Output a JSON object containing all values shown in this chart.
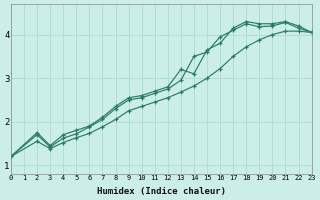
{
  "xlabel": "Humidex (Indice chaleur)",
  "ylabel": "",
  "bg_color": "#cceee8",
  "grid_color": "#aaddcc",
  "line_color": "#2a7a6a",
  "x_ticks": [
    0,
    1,
    2,
    3,
    4,
    5,
    6,
    7,
    8,
    9,
    10,
    11,
    12,
    13,
    14,
    15,
    16,
    17,
    18,
    19,
    20,
    21,
    22,
    23
  ],
  "y_ticks": [
    1,
    2,
    3,
    4
  ],
  "xlim": [
    0,
    23
  ],
  "ylim": [
    0.8,
    4.7
  ],
  "line1_x": [
    0,
    2,
    3,
    4,
    5,
    6,
    7,
    8,
    9,
    10,
    11,
    12,
    13,
    14,
    15,
    16,
    17,
    18,
    19,
    20,
    21,
    22,
    23
  ],
  "line1_y": [
    1.2,
    1.75,
    1.45,
    1.7,
    1.8,
    1.9,
    2.1,
    2.35,
    2.55,
    2.6,
    2.7,
    2.8,
    3.2,
    3.1,
    3.65,
    3.8,
    4.15,
    4.3,
    4.25,
    4.25,
    4.3,
    4.2,
    4.05
  ],
  "line2_x": [
    0,
    2,
    3,
    4,
    5,
    6,
    7,
    8,
    9,
    10,
    11,
    12,
    13,
    14,
    15,
    16,
    17,
    18,
    19,
    20,
    21,
    22,
    23
  ],
  "line2_y": [
    1.2,
    1.7,
    1.42,
    1.62,
    1.72,
    1.88,
    2.05,
    2.3,
    2.5,
    2.55,
    2.65,
    2.75,
    2.95,
    3.5,
    3.6,
    3.95,
    4.1,
    4.25,
    4.18,
    4.2,
    4.28,
    4.15,
    4.05
  ],
  "line3_x": [
    0,
    2,
    3,
    4,
    5,
    6,
    7,
    8,
    9,
    10,
    11,
    12,
    13,
    14,
    15,
    16,
    17,
    18,
    19,
    20,
    21,
    22,
    23
  ],
  "line3_y": [
    1.2,
    1.55,
    1.38,
    1.52,
    1.63,
    1.73,
    1.88,
    2.05,
    2.25,
    2.35,
    2.45,
    2.55,
    2.68,
    2.82,
    3.0,
    3.22,
    3.5,
    3.72,
    3.88,
    4.0,
    4.08,
    4.08,
    4.05
  ]
}
